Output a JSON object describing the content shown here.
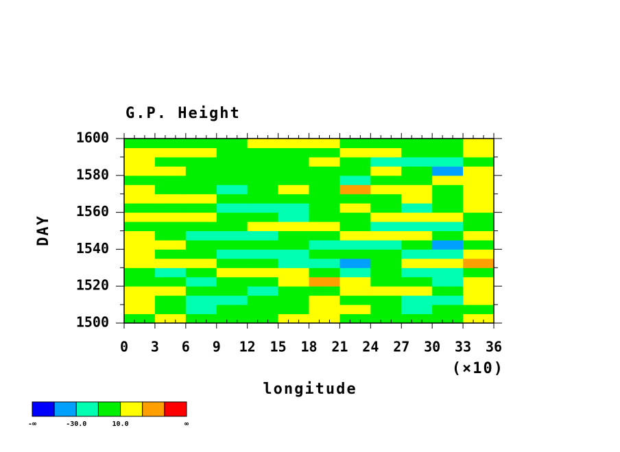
{
  "chart_data": {
    "type": "filled-contour",
    "title": "G.P. Height",
    "x_label": "longitude",
    "x_multiplier": "(×10)",
    "y_label": "DAY",
    "xlim": [
      0,
      36
    ],
    "xticks": [
      0,
      3,
      6,
      9,
      12,
      15,
      18,
      21,
      24,
      27,
      30,
      33,
      36
    ],
    "ylim": [
      1500,
      1600
    ],
    "yticks": [
      1500,
      1520,
      1540,
      1560,
      1580,
      1600
    ],
    "levels": [
      -50,
      -30,
      -10,
      10,
      30,
      50
    ],
    "colors": [
      "#0000ff",
      "#00a0ff",
      "#00ffb0",
      "#00f000",
      "#ffff00",
      "#ffa000",
      "#ff0000"
    ],
    "colorbar_ticks": [
      {
        "label": "-∞"
      },
      {
        "value": -30,
        "label": "-30.0"
      },
      {
        "value": 10,
        "label": "10.0"
      },
      {
        "label": "∞"
      }
    ],
    "z": [
      [
        5,
        15,
        0,
        -5,
        5,
        15,
        20,
        5,
        0,
        -5,
        0,
        15
      ],
      [
        20,
        5,
        -15,
        -5,
        0,
        10,
        25,
        15,
        5,
        -15,
        -5,
        5
      ],
      [
        15,
        -5,
        -20,
        -15,
        0,
        5,
        15,
        5,
        -5,
        -20,
        -15,
        20
      ],
      [
        25,
        15,
        5,
        -5,
        -15,
        0,
        5,
        20,
        25,
        15,
        5,
        15
      ],
      [
        10,
        -5,
        -20,
        -5,
        0,
        15,
        35,
        15,
        5,
        -5,
        -20,
        25
      ],
      [
        -5,
        -15,
        5,
        15,
        25,
        15,
        -5,
        -15,
        -5,
        -25,
        -15,
        10
      ],
      [
        20,
        25,
        15,
        0,
        -5,
        -15,
        -25,
        -45,
        -5,
        15,
        25,
        40
      ],
      [
        15,
        5,
        -5,
        -15,
        -20,
        -15,
        -5,
        5,
        0,
        -15,
        -20,
        15
      ],
      [
        25,
        20,
        5,
        0,
        5,
        -5,
        -15,
        -25,
        -15,
        -5,
        -35,
        5
      ],
      [
        15,
        5,
        -15,
        -25,
        -20,
        -5,
        5,
        15,
        25,
        20,
        5,
        20
      ],
      [
        5,
        -5,
        -5,
        0,
        15,
        20,
        15,
        -5,
        -15,
        -25,
        -20,
        -5
      ],
      [
        20,
        25,
        15,
        5,
        -5,
        -15,
        -5,
        5,
        15,
        25,
        15,
        5
      ],
      [
        5,
        0,
        -5,
        -15,
        -25,
        -15,
        -5,
        25,
        -5,
        -15,
        -5,
        15
      ],
      [
        25,
        20,
        15,
        5,
        0,
        -5,
        5,
        0,
        -5,
        15,
        5,
        25
      ],
      [
        15,
        5,
        -5,
        -15,
        5,
        15,
        5,
        40,
        25,
        15,
        5,
        15
      ],
      [
        5,
        -5,
        -5,
        0,
        5,
        5,
        -5,
        -15,
        -5,
        5,
        15,
        25
      ],
      [
        30,
        15,
        5,
        5,
        5,
        0,
        -5,
        5,
        15,
        -5,
        -35,
        20
      ],
      [
        20,
        5,
        -5,
        -5,
        0,
        5,
        15,
        5,
        -15,
        -25,
        -15,
        5
      ],
      [
        15,
        25,
        15,
        5,
        -5,
        0,
        5,
        15,
        20,
        5,
        -5,
        15
      ],
      [
        5,
        -5,
        0,
        5,
        15,
        20,
        15,
        5,
        0,
        -5,
        5,
        15
      ]
    ]
  }
}
